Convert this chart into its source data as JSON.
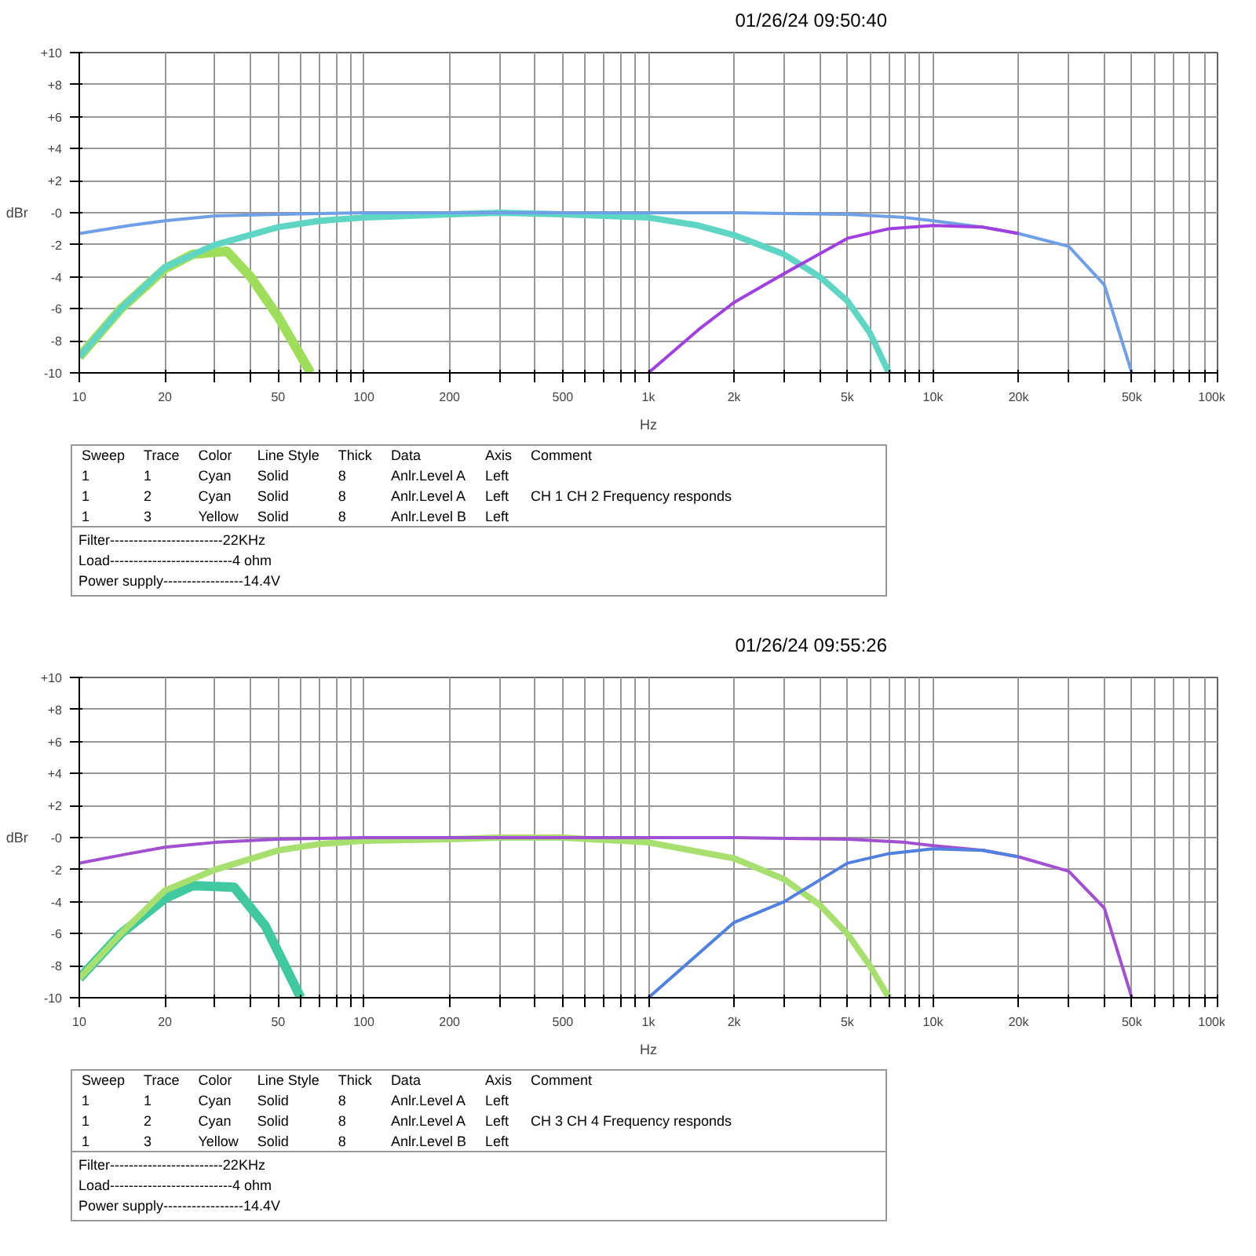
{
  "chart_data": [
    {
      "type": "line",
      "title": "01/26/24 09:50:40",
      "xlabel": "Hz",
      "ylabel": "dBr",
      "log": "x",
      "grid": true,
      "xlim": [
        10,
        100000
      ],
      "ylim": [
        -10,
        10
      ],
      "xticks": [
        10,
        20,
        {
          "value": 30,
          "label": null
        },
        {
          "value": 40,
          "label": null
        },
        50,
        {
          "value": 60,
          "label": null
        },
        {
          "value": 70,
          "label": null
        },
        {
          "value": 80,
          "label": null
        },
        {
          "value": 90,
          "label": null
        },
        100,
        200,
        {
          "value": 300,
          "label": null
        },
        {
          "value": 400,
          "label": null
        },
        500,
        {
          "value": 600,
          "label": null
        },
        {
          "value": 700,
          "label": null
        },
        {
          "value": 800,
          "label": null
        },
        {
          "value": 900,
          "label": null
        },
        {
          "value": 1000,
          "label": "1k"
        },
        {
          "value": 2000,
          "label": "2k"
        },
        {
          "value": 3000,
          "label": null
        },
        {
          "value": 4000,
          "label": null
        },
        {
          "value": 5000,
          "label": "5k"
        },
        {
          "value": 6000,
          "label": null
        },
        {
          "value": 7000,
          "label": null
        },
        {
          "value": 8000,
          "label": null
        },
        {
          "value": 9000,
          "label": null
        },
        {
          "value": 10000,
          "label": "10k"
        },
        {
          "value": 20000,
          "label": "20k"
        },
        {
          "value": 30000,
          "label": null
        },
        {
          "value": 40000,
          "label": null
        },
        {
          "value": 50000,
          "label": "50k"
        },
        {
          "value": 60000,
          "label": null
        },
        {
          "value": 70000,
          "label": null
        },
        {
          "value": 80000,
          "label": null
        },
        {
          "value": 90000,
          "label": null
        },
        {
          "value": 100000,
          "label": "100k"
        }
      ],
      "yticks": [
        {
          "value": 10,
          "label": "+10"
        },
        {
          "value": 8,
          "label": "+8"
        },
        {
          "value": 6,
          "label": "+6"
        },
        {
          "value": 4,
          "label": "+4"
        },
        {
          "value": 2,
          "label": "+2"
        },
        {
          "value": 0,
          "label": "-0"
        },
        -2,
        -4,
        -6,
        -8,
        -10
      ],
      "series": [
        {
          "color": "#9ede5a",
          "x": [
            10,
            14,
            20,
            25,
            33,
            40,
            50,
            65
          ],
          "values": [
            -9,
            -6,
            -3.5,
            -2.6,
            -2.4,
            -4,
            -6.5,
            -10
          ]
        },
        {
          "color": "#5fd6c4",
          "x": [
            10,
            14,
            20,
            30,
            50,
            70,
            100,
            200,
            300,
            500,
            1000,
            1500,
            2000,
            3000,
            4000,
            5000,
            6000,
            7000
          ],
          "values": [
            -9,
            -6,
            -3.4,
            -2,
            -0.9,
            -0.5,
            -0.3,
            -0.1,
            0,
            -0.1,
            -0.3,
            -0.8,
            -1.4,
            -2.6,
            -4,
            -5.5,
            -7.5,
            -10
          ]
        },
        {
          "color": "#6f9fe6",
          "x": [
            10,
            15,
            20,
            30,
            50,
            100,
            300,
            1000,
            2000,
            5000,
            8000,
            10000,
            15000,
            20000,
            30000,
            40000,
            50000
          ],
          "values": [
            -1.3,
            -0.8,
            -0.5,
            -0.2,
            -0.1,
            0,
            0,
            0,
            0,
            -0.1,
            -0.3,
            -0.5,
            -0.9,
            -1.3,
            -2.1,
            -4.5,
            -10
          ]
        },
        {
          "color": "#a040e0",
          "x": [
            1000,
            1500,
            2000,
            3000,
            5000,
            7000,
            10000,
            15000,
            20000
          ],
          "values": [
            -10,
            -7.3,
            -5.6,
            -3.8,
            -1.6,
            -1.0,
            -0.8,
            -0.9,
            -1.3
          ]
        }
      ],
      "annotations": [
        "Sweep\tTrace\tColor\tLine Style\tThick\tData\tAxis\tComment",
        "1\t1\tCyan\tSolid\t8\tAnlr.Level A\tLeft\t",
        "1\t2\tCyan\tSolid\t8\tAnlr.Level A\tLeft\tCH 1 CH 2  Frequency responds",
        "1\t3\tYellow\tSolid\t8\tAnlr.Level B\tLeft\t",
        "Filter------------------------22KHz",
        "Load--------------------------4 ohm",
        "Power supply-----------------14.4V"
      ]
    },
    {
      "type": "line",
      "title": "01/26/24 09:55:26",
      "xlabel": "Hz",
      "ylabel": "dBr",
      "log": "x",
      "grid": true,
      "xlim": [
        10,
        100000
      ],
      "ylim": [
        -10,
        10
      ],
      "xticks": [
        10,
        20,
        {
          "value": 30,
          "label": null
        },
        {
          "value": 40,
          "label": null
        },
        50,
        {
          "value": 60,
          "label": null
        },
        {
          "value": 70,
          "label": null
        },
        {
          "value": 80,
          "label": null
        },
        {
          "value": 90,
          "label": null
        },
        100,
        200,
        {
          "value": 300,
          "label": null
        },
        {
          "value": 400,
          "label": null
        },
        500,
        {
          "value": 600,
          "label": null
        },
        {
          "value": 700,
          "label": null
        },
        {
          "value": 800,
          "label": null
        },
        {
          "value": 900,
          "label": null
        },
        {
          "value": 1000,
          "label": "1k"
        },
        {
          "value": 2000,
          "label": "2k"
        },
        {
          "value": 3000,
          "label": null
        },
        {
          "value": 4000,
          "label": null
        },
        {
          "value": 5000,
          "label": "5k"
        },
        {
          "value": 6000,
          "label": null
        },
        {
          "value": 7000,
          "label": null
        },
        {
          "value": 8000,
          "label": null
        },
        {
          "value": 9000,
          "label": null
        },
        {
          "value": 10000,
          "label": "10k"
        },
        {
          "value": 20000,
          "label": "20k"
        },
        {
          "value": 30000,
          "label": null
        },
        {
          "value": 40000,
          "label": null
        },
        {
          "value": 50000,
          "label": "50k"
        },
        {
          "value": 60000,
          "label": null
        },
        {
          "value": 70000,
          "label": null
        },
        {
          "value": 80000,
          "label": null
        },
        {
          "value": 90000,
          "label": null
        },
        {
          "value": 100000,
          "label": "100k"
        }
      ],
      "yticks": [
        {
          "value": 10,
          "label": "+10"
        },
        {
          "value": 8,
          "label": "+8"
        },
        {
          "value": 6,
          "label": "+6"
        },
        {
          "value": 4,
          "label": "+4"
        },
        {
          "value": 2,
          "label": "+2"
        },
        {
          "value": 0,
          "label": "-0"
        },
        -2,
        -4,
        -6,
        -8,
        -10
      ],
      "series": [
        {
          "color": "#40c8a0",
          "x": [
            10,
            14,
            20,
            25,
            35,
            45,
            60
          ],
          "values": [
            -8.8,
            -6,
            -3.8,
            -3.0,
            -3.1,
            -5.5,
            -10
          ]
        },
        {
          "color": "#a8e070",
          "x": [
            10,
            14,
            20,
            30,
            50,
            70,
            100,
            200,
            300,
            500,
            1000,
            2000,
            3000,
            4000,
            5000,
            6000,
            7000
          ],
          "values": [
            -8.8,
            -6,
            -3.3,
            -2,
            -0.8,
            -0.4,
            -0.2,
            -0.1,
            0,
            0,
            -0.3,
            -1.3,
            -2.6,
            -4.2,
            -6,
            -8,
            -10
          ]
        },
        {
          "color": "#a050d0",
          "x": [
            10,
            15,
            20,
            30,
            50,
            100,
            300,
            1000,
            2000,
            5000,
            8000,
            10000,
            15000,
            20000,
            30000,
            40000,
            50000
          ],
          "values": [
            -1.6,
            -1.0,
            -0.6,
            -0.3,
            -0.1,
            0,
            0,
            0,
            0,
            -0.1,
            -0.3,
            -0.5,
            -0.8,
            -1.2,
            -2.1,
            -4.4,
            -10
          ]
        },
        {
          "color": "#5080e0",
          "x": [
            1000,
            2000,
            3000,
            5000,
            7000,
            10000,
            15000,
            20000
          ],
          "values": [
            -10,
            -5.3,
            -4,
            -1.6,
            -1.0,
            -0.7,
            -0.8,
            -1.2
          ]
        }
      ],
      "annotations": [
        "Sweep\tTrace\tColor\tLine Style\tThick\tData\tAxis\tComment",
        "1\t1\tCyan\tSolid\t8\tAnlr.Level A\tLeft\t",
        "1\t2\tCyan\tSolid\t8\tAnlr.Level A\tLeft\tCH 3 CH 4  Frequency responds",
        "1\t3\tYellow\tSolid\t8\tAnlr.Level B\tLeft\t",
        "Filter------------------------22KHz",
        "Load--------------------------4 ohm",
        "Power supply-----------------14.4V"
      ]
    }
  ]
}
